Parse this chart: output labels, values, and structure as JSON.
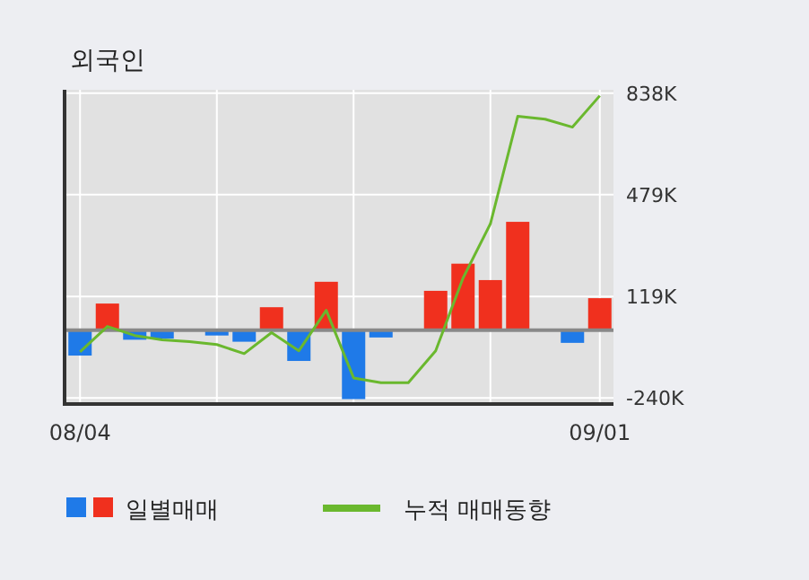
{
  "chart_data": {
    "type": "bar",
    "title": "외국인",
    "categories": [
      "08/04",
      null,
      null,
      null,
      null,
      null,
      null,
      null,
      null,
      null,
      null,
      null,
      null,
      null,
      null,
      null,
      null,
      null,
      null,
      "09/01"
    ],
    "series": [
      {
        "name": "일별매매",
        "colors": [
          "#1f7ae8",
          "#f0301e",
          "#1f7ae8",
          "#1f7ae8",
          "#1f7ae8",
          "#1f7ae8",
          "#1f7ae8",
          "#f0301e",
          "#1f7ae8",
          "#f0301e",
          "#1f7ae8",
          "#1f7ae8",
          "#f0301e",
          "#f0301e",
          "#f0301e",
          "#f0301e",
          "#f0301e",
          "#f0301e",
          "#1f7ae8",
          "#f0301e"
        ],
        "values": [
          -90,
          94,
          -34,
          -30,
          0,
          -19,
          -41,
          81,
          -109,
          171,
          -244,
          -26,
          0,
          139,
          235,
          177,
          383,
          0,
          -45,
          113
        ]
      },
      {
        "name": "누적 매매동향",
        "type": "line",
        "color": "#6ab82e",
        "values": [
          -77,
          13,
          -19,
          -34,
          -41,
          -51,
          -83,
          -9,
          -73,
          70,
          -169,
          -186,
          -186,
          -73,
          184,
          376,
          756,
          746,
          718,
          829
        ]
      }
    ],
    "ylim": [
      -255,
      850
    ],
    "yticks": [
      {
        "value": -240,
        "label": "-240K"
      },
      {
        "value": 119,
        "label": "119K"
      },
      {
        "value": 479,
        "label": "479K"
      },
      {
        "value": 838,
        "label": "838K"
      }
    ],
    "grid": true,
    "legend": "bottom"
  }
}
